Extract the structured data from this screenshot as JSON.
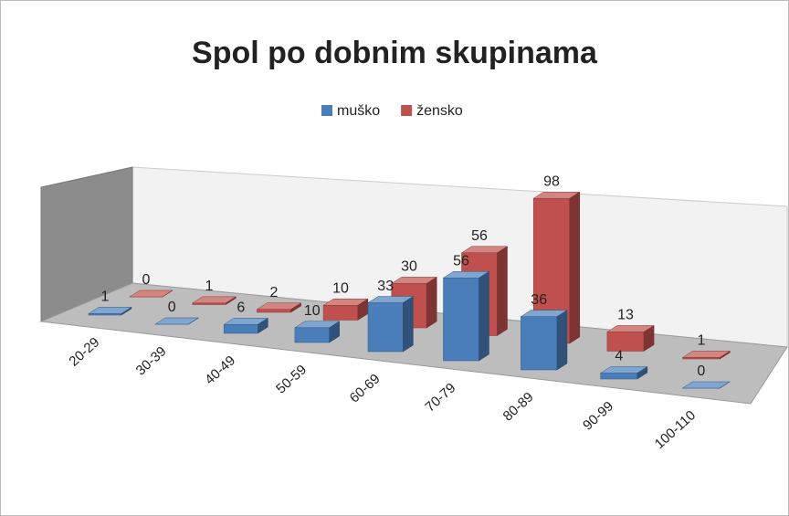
{
  "chart_data": {
    "type": "bar3d",
    "title": "Spol po dobnim skupinama",
    "categories": [
      "20-29",
      "30-39",
      "40-49",
      "50-59",
      "60-69",
      "70-79",
      "80-89",
      "90-99",
      "100-110"
    ],
    "series": [
      {
        "name": "muško",
        "color": "#4a7ebb",
        "values": [
          1,
          0,
          6,
          10,
          33,
          56,
          36,
          4,
          0
        ]
      },
      {
        "name": "žensko",
        "color": "#c0504d",
        "values": [
          0,
          1,
          2,
          10,
          30,
          56,
          98,
          13,
          1
        ]
      }
    ],
    "legend": "top"
  }
}
